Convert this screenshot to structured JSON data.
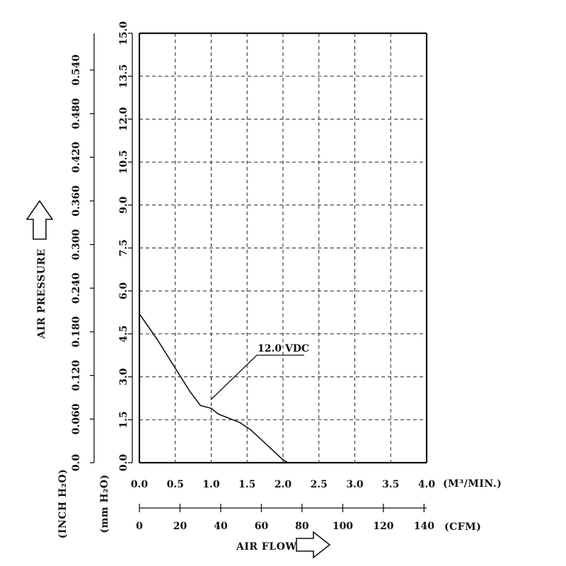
{
  "chart_data": {
    "type": "line",
    "title": "",
    "xlabel": "AIR FLOW",
    "ylabel": "AIR PRESSURE",
    "xlim": [
      0,
      4.0
    ],
    "ylim": [
      0,
      15.0
    ],
    "grid": true,
    "x_primary_unit": "(M³/MIN.)",
    "x_secondary_unit": "(CFM)",
    "y_primary_unit": "(mm H₂O)",
    "y_secondary_unit": "(INCH H₂O)",
    "x_ticks": [
      "0.0",
      "0.5",
      "1.0",
      "1.5",
      "2.0",
      "2.5",
      "3.0",
      "3.5",
      "4.0"
    ],
    "x_secondary_ticks": [
      "0",
      "20",
      "40",
      "60",
      "80",
      "100",
      "120",
      "140"
    ],
    "x_secondary_values_m3": [
      0,
      0.566,
      1.133,
      1.699,
      2.265,
      2.832,
      3.398,
      3.964
    ],
    "y_ticks": [
      "0.0",
      "1.5",
      "3.0",
      "4.5",
      "6.0",
      "7.5",
      "9.0",
      "10.5",
      "12.0",
      "13.5",
      "15.0"
    ],
    "y_secondary_ticks": [
      "0.0",
      "0.060",
      "0.120",
      "0.180",
      "0.240",
      "0.300",
      "0.360",
      "0.420",
      "0.480",
      "0.540"
    ],
    "y_secondary_values_mm": [
      0,
      1.524,
      3.048,
      4.572,
      6.096,
      7.62,
      9.144,
      10.668,
      12.192,
      13.716
    ],
    "series": [
      {
        "name": "12.0 VDC",
        "x": [
          0.0,
          0.25,
          0.5,
          0.7,
          0.85,
          1.0,
          1.1,
          1.25,
          1.4,
          1.55,
          1.7,
          1.85,
          2.0,
          2.07
        ],
        "y": [
          5.2,
          4.3,
          3.3,
          2.5,
          2.0,
          1.9,
          1.7,
          1.55,
          1.4,
          1.15,
          0.8,
          0.45,
          0.1,
          0.0
        ]
      }
    ],
    "annotations": [
      {
        "text": "12.0 VDC",
        "x": 0.98,
        "y": 2.2
      }
    ]
  }
}
